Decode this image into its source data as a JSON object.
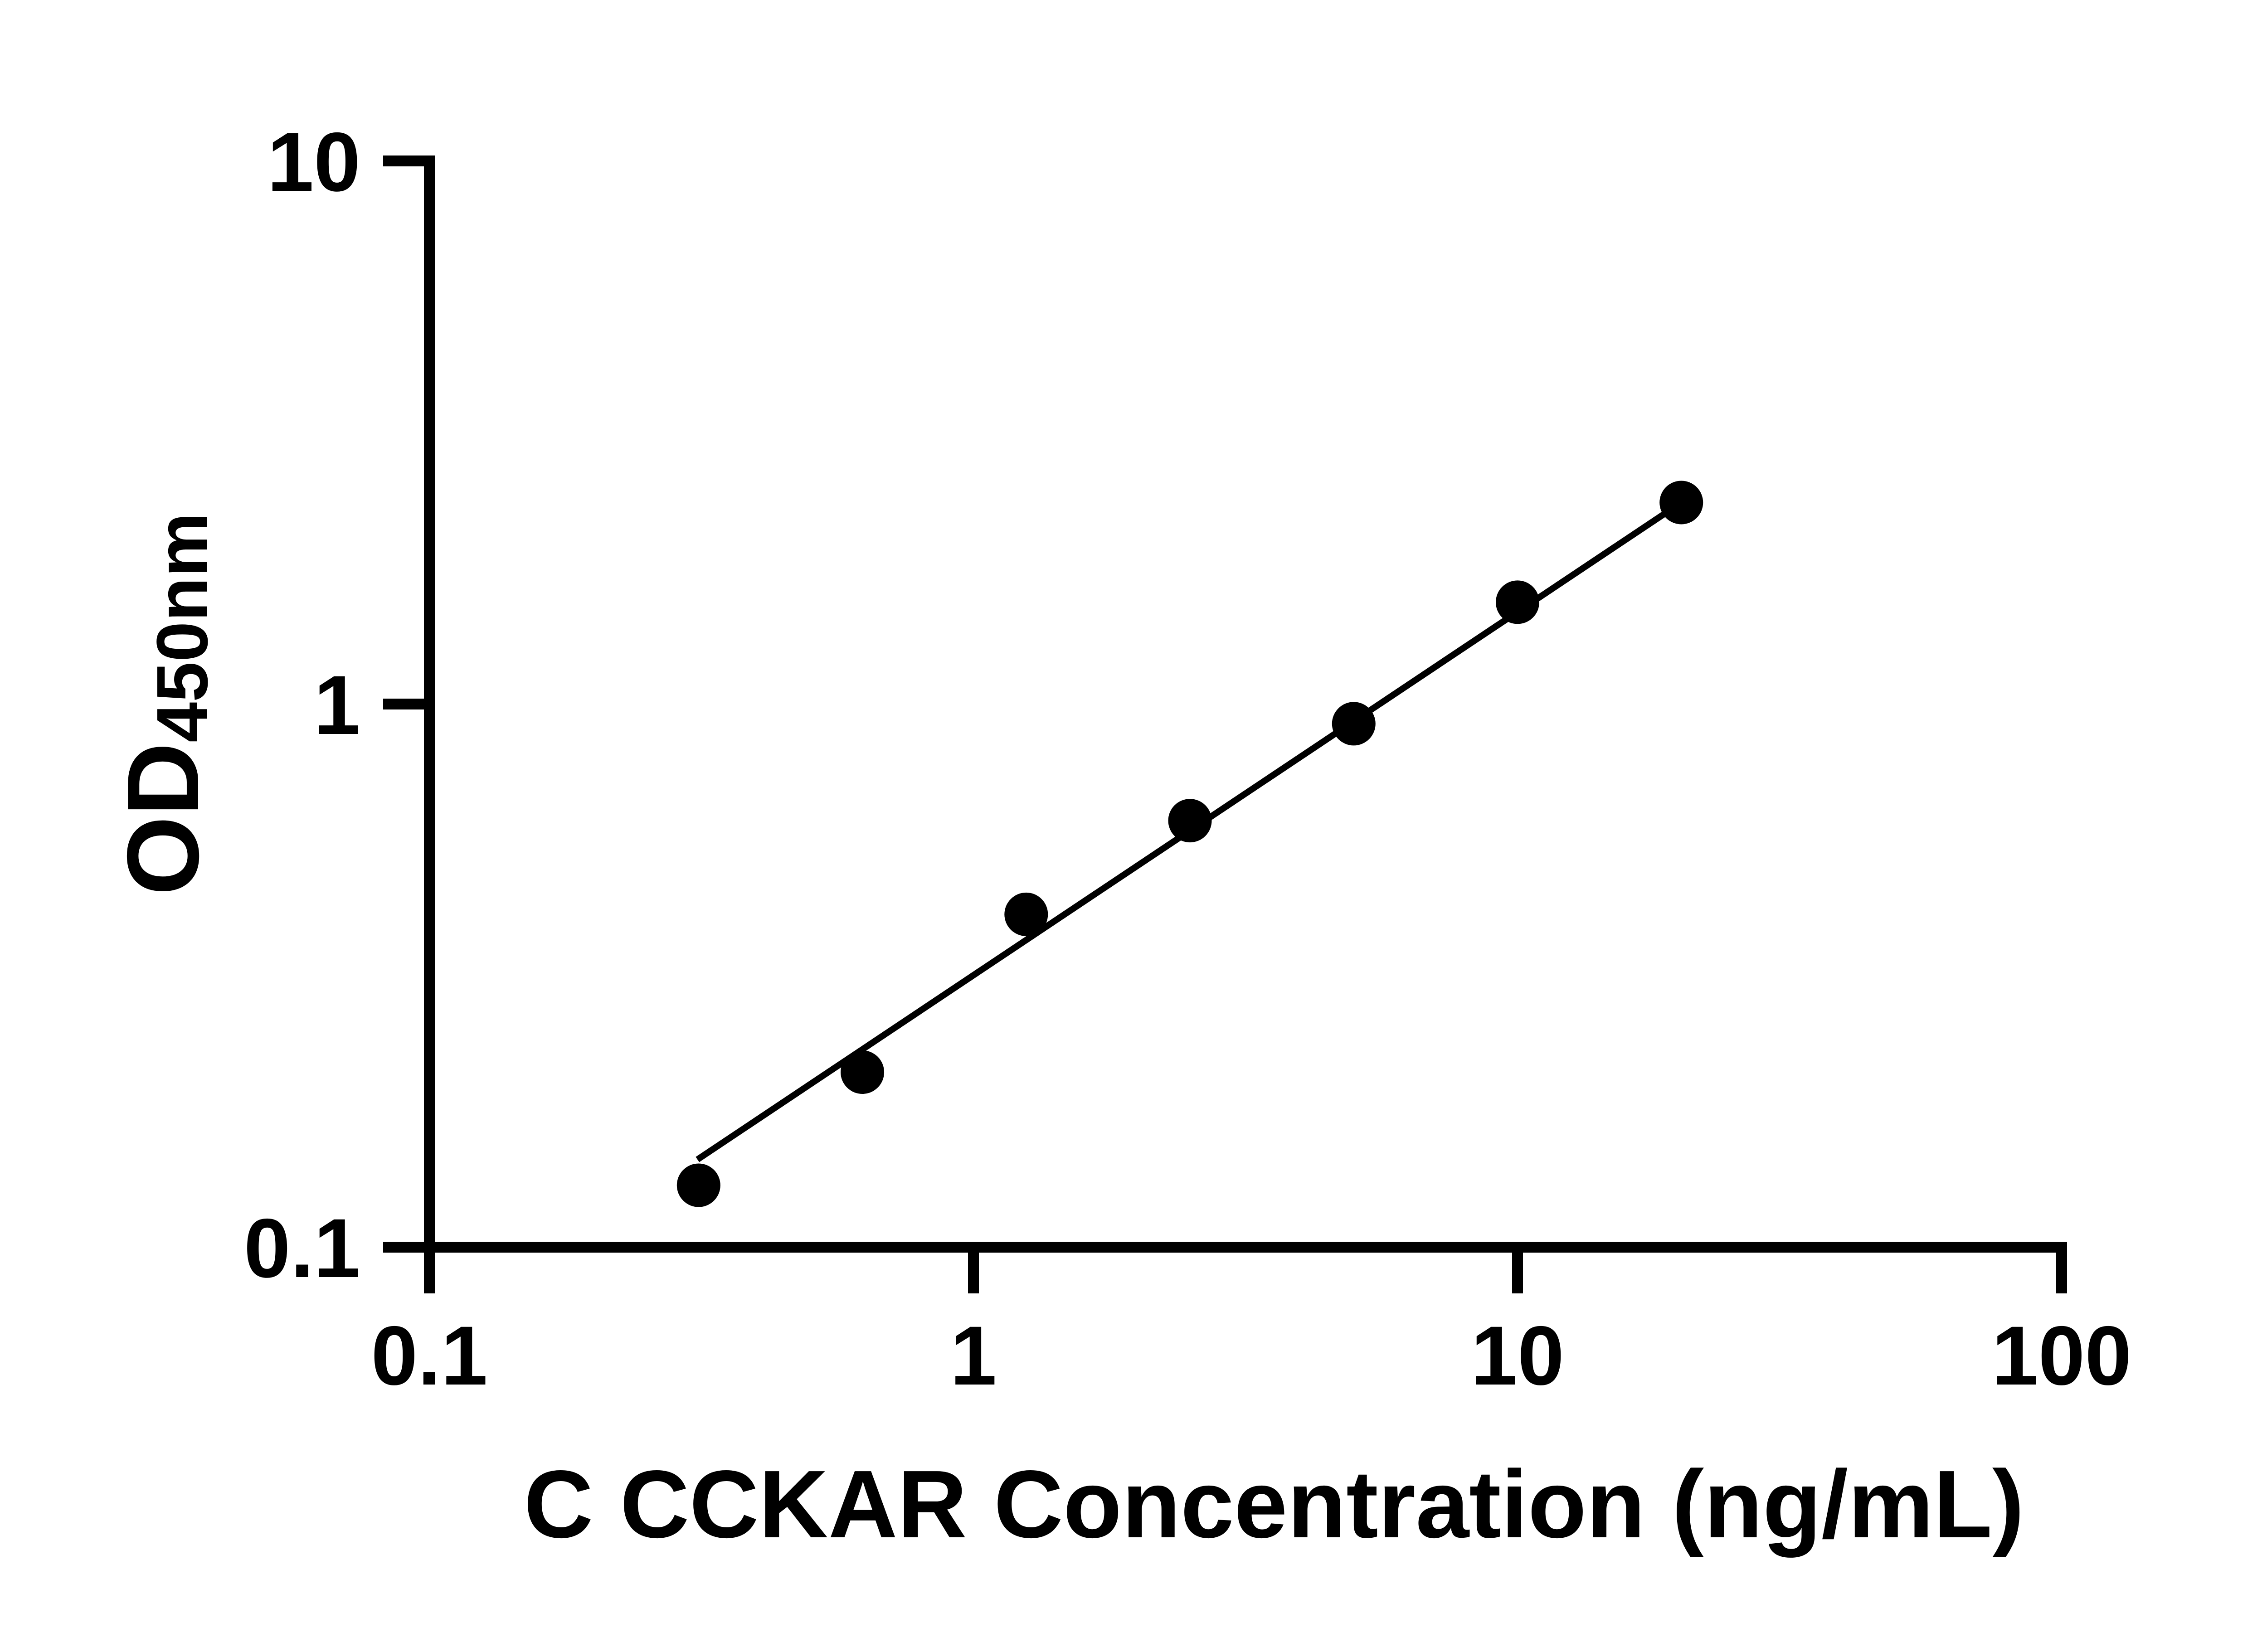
{
  "figure": {
    "background": "#ffffff",
    "ink_color": "#000000"
  },
  "chart_data": {
    "type": "scatter",
    "title": "",
    "xlabel": "C CCKAR Concentration (ng/mL)",
    "ylabel": "OD",
    "ylabel_subscript": "450nm",
    "x_scale": "log",
    "y_scale": "log",
    "xlim": [
      0.1,
      100
    ],
    "ylim": [
      0.1,
      10
    ],
    "grid": false,
    "legend": null,
    "x_ticks": [
      {
        "value": 0.1,
        "label": "0.1"
      },
      {
        "value": 1,
        "label": "1"
      },
      {
        "value": 10,
        "label": "10"
      },
      {
        "value": 100,
        "label": "100"
      }
    ],
    "y_ticks": [
      {
        "value": 0.1,
        "label": "0.1"
      },
      {
        "value": 1,
        "label": "1"
      },
      {
        "value": 10,
        "label": "10"
      }
    ],
    "series": [
      {
        "name": "standard-curve-fit-line",
        "type": "line",
        "color": "#000000",
        "x": [
          0.311,
          20.0
        ],
        "y": [
          0.145,
          2.35
        ]
      },
      {
        "name": "standard-points",
        "type": "scatter",
        "marker": "circle",
        "color": "#000000",
        "x": [
          0.3125,
          0.625,
          1.25,
          2.5,
          5,
          10,
          20
        ],
        "y": [
          0.13,
          0.21,
          0.41,
          0.61,
          0.92,
          1.54,
          2.35
        ]
      }
    ]
  }
}
